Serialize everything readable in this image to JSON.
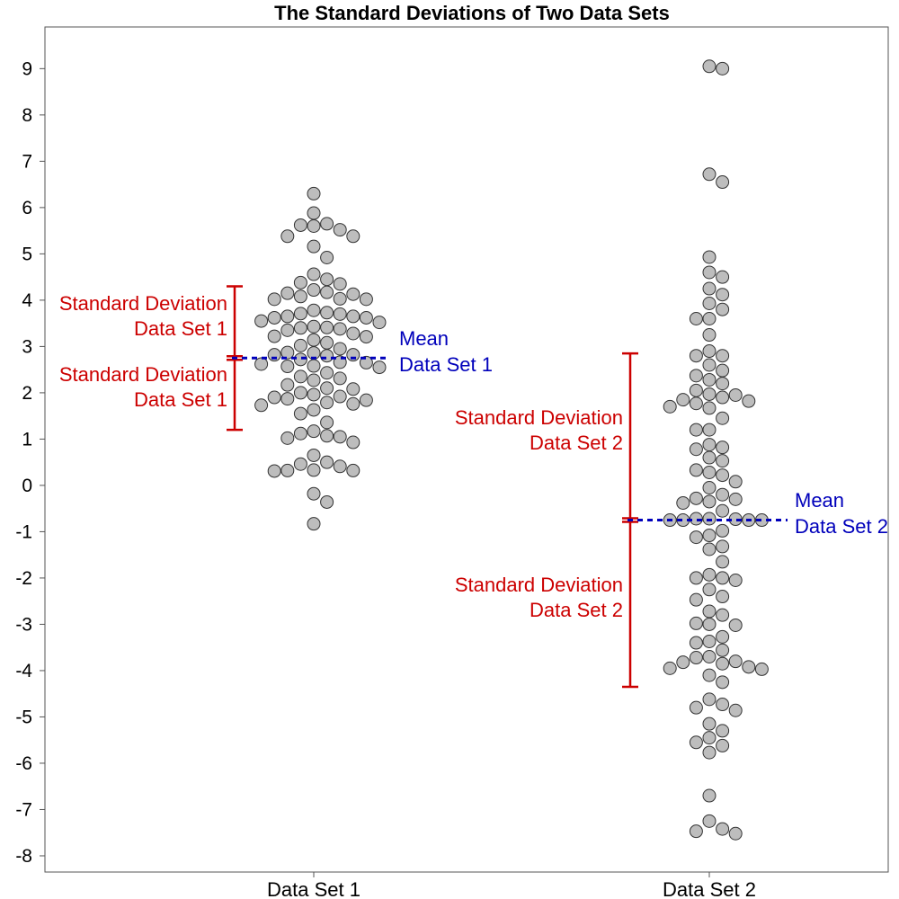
{
  "chart_data": {
    "type": "scatter",
    "title": "The Standard Deviations of Two Data Sets",
    "xlabel": "",
    "ylabel": "",
    "ylim": [
      -8.35,
      9.9
    ],
    "yticks": [
      -8,
      -7,
      -6,
      -5,
      -4,
      -3,
      -2,
      -1,
      0,
      1,
      2,
      3,
      4,
      5,
      6,
      7,
      8,
      9
    ],
    "categories": [
      "Data Set 1",
      "Data Set 2"
    ],
    "grid": false,
    "colors": {
      "point_fill": "#bdbdbd",
      "point_stroke": "#333333",
      "sd_bar": "#cc0000",
      "mean_line": "#0000bb"
    },
    "series": [
      {
        "values": [
          6.3,
          5.88,
          5.65,
          5.52,
          5.6,
          5.38,
          5.62,
          5.38,
          5.16,
          4.92,
          4.56,
          4.45,
          4.35,
          4.38,
          4.22,
          4.15,
          4.13,
          4.03,
          4.02,
          4.02,
          4.08,
          4.17,
          3.78,
          3.62,
          3.71,
          3.65,
          3.62,
          3.73,
          3.7,
          3.65,
          3.52,
          3.55,
          3.43,
          3.41,
          3.4,
          3.38,
          3.35,
          3.28,
          3.22,
          3.21,
          3.14,
          3.08,
          3.02,
          2.95,
          2.87,
          2.86,
          2.82,
          2.82,
          2.72,
          2.8,
          2.66,
          2.55,
          2.65,
          2.58,
          2.62,
          2.57,
          2.43,
          2.35,
          2.31,
          2.27,
          2.17,
          2.1,
          2.08,
          2.0,
          1.96,
          1.92,
          1.9,
          1.87,
          1.84,
          1.79,
          1.76,
          1.73,
          1.63,
          1.55,
          1.36,
          1.17,
          1.07,
          1.05,
          0.93,
          1.02,
          1.12,
          0.65,
          0.5,
          0.46,
          0.32,
          0.31,
          0.33,
          0.32,
          0.41,
          -0.18,
          -0.36,
          -0.83
        ],
        "mean": 2.75,
        "sd": 1.55
      },
      {
        "values": [
          9.0,
          9.05,
          6.72,
          6.55,
          4.93,
          4.6,
          4.5,
          4.25,
          4.12,
          3.93,
          3.8,
          3.6,
          3.6,
          3.25,
          2.9,
          2.8,
          2.8,
          2.6,
          2.48,
          2.37,
          2.28,
          2.2,
          1.97,
          1.95,
          2.05,
          1.9,
          1.85,
          1.82,
          1.77,
          1.7,
          1.67,
          1.45,
          1.2,
          1.2,
          0.88,
          0.82,
          0.78,
          0.6,
          0.53,
          0.33,
          0.28,
          0.22,
          0.08,
          -0.05,
          -0.2,
          -0.28,
          -0.3,
          -0.35,
          -0.38,
          -0.55,
          -0.72,
          -0.75,
          -0.75,
          -0.75,
          -0.73,
          -0.72,
          -0.75,
          -0.98,
          -1.08,
          -1.12,
          -1.32,
          -1.38,
          -1.65,
          -1.93,
          -2.0,
          -2.0,
          -2.05,
          -2.25,
          -2.4,
          -2.47,
          -2.72,
          -2.8,
          -2.98,
          -3.02,
          -3.0,
          -3.27,
          -3.37,
          -3.4,
          -3.56,
          -3.7,
          -3.72,
          -3.8,
          -3.82,
          -3.85,
          -3.92,
          -3.95,
          -3.97,
          -4.1,
          -4.25,
          -4.62,
          -4.73,
          -4.8,
          -4.86,
          -5.15,
          -5.3,
          -5.45,
          -5.55,
          -5.62,
          -5.77,
          -6.7,
          -7.25,
          -7.42,
          -7.47,
          -7.52
        ],
        "mean": -0.75,
        "sd": 3.6
      }
    ],
    "annotations": {
      "sd_label_line1": "Standard Deviation",
      "sd1_label_line2": "Data Set 1",
      "sd2_label_line2": "Data Set 2",
      "mean_label_line1": "Mean",
      "mean1_label_line2": "Data Set 1",
      "mean2_label_line2": "Data Set 2"
    }
  }
}
